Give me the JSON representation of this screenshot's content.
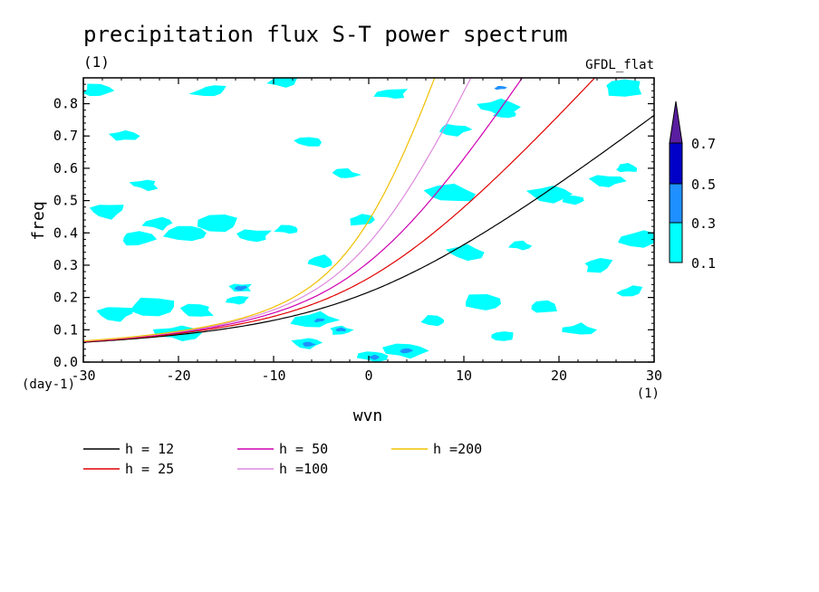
{
  "chart_data": {
    "type": "heatmap",
    "title": "precipitation flux S-T power spectrum",
    "subtitle_left": "(1)",
    "subtitle_right": "GFDL_flat",
    "xlabel": "wvn",
    "ylabel": "freq",
    "x_unit": "(1)",
    "y_unit": "(day-1)",
    "xlim": [
      -30,
      30
    ],
    "ylim": [
      0,
      0.88
    ],
    "xticks": [
      -30,
      -20,
      -10,
      0,
      10,
      20,
      30
    ],
    "xtick_labels": [
      "-30",
      "-20",
      "-10",
      "0",
      "10",
      "20",
      "30"
    ],
    "yticks": [
      0,
      0.1,
      0.2,
      0.3,
      0.4,
      0.5,
      0.6,
      0.7,
      0.8
    ],
    "ytick_labels": [
      "0.0",
      "0.1",
      "0.2",
      "0.3",
      "0.4",
      "0.5",
      "0.6",
      "0.7",
      "0.8"
    ],
    "colorbar": {
      "levels": [
        0.1,
        0.3,
        0.5,
        0.7
      ],
      "labels": [
        "0.1",
        "0.3",
        "0.5",
        "0.7"
      ],
      "colors": [
        "#00ffff",
        "#1e90ff",
        "#0000c8",
        "#5a1ea0"
      ]
    },
    "curves": [
      {
        "name": "h = 12",
        "h": 12,
        "color": "#000000"
      },
      {
        "name": "h = 25",
        "h": 25,
        "color": "#e00000"
      },
      {
        "name": "h = 50",
        "h": 50,
        "color": "#d000b0"
      },
      {
        "name": "h =100",
        "h": 100,
        "color": "#dd88dd"
      },
      {
        "name": "h =200",
        "h": 200,
        "color": "#f0c000"
      }
    ],
    "contour_patches": [
      {
        "x": -28.5,
        "y": 0.84,
        "level": 1
      },
      {
        "x": -25.8,
        "y": 0.7,
        "level": 1
      },
      {
        "x": -23.5,
        "y": 0.55,
        "level": 1
      },
      {
        "x": -27.5,
        "y": 0.47,
        "level": 1
      },
      {
        "x": -22.0,
        "y": 0.43,
        "level": 1
      },
      {
        "x": -24.5,
        "y": 0.38,
        "level": 1
      },
      {
        "x": -19.0,
        "y": 0.4,
        "level": 1
      },
      {
        "x": -15.5,
        "y": 0.43,
        "level": 1
      },
      {
        "x": -12.0,
        "y": 0.39,
        "level": 1
      },
      {
        "x": -8.5,
        "y": 0.41,
        "level": 1
      },
      {
        "x": -6.5,
        "y": 0.68,
        "level": 1
      },
      {
        "x": -2.5,
        "y": 0.58,
        "level": 1
      },
      {
        "x": -5.0,
        "y": 0.31,
        "level": 1
      },
      {
        "x": -13.5,
        "y": 0.23,
        "level": 1
      },
      {
        "x": -13.5,
        "y": 0.23,
        "level": 2
      },
      {
        "x": -13.8,
        "y": 0.19,
        "level": 1
      },
      {
        "x": -26.5,
        "y": 0.15,
        "level": 1
      },
      {
        "x": -22.5,
        "y": 0.17,
        "level": 1
      },
      {
        "x": -18.0,
        "y": 0.16,
        "level": 1
      },
      {
        "x": -5.5,
        "y": 0.13,
        "level": 1
      },
      {
        "x": -5.2,
        "y": 0.13,
        "level": 2
      },
      {
        "x": -6.5,
        "y": 0.06,
        "level": 1
      },
      {
        "x": -6.3,
        "y": 0.055,
        "level": 2
      },
      {
        "x": -3.0,
        "y": 0.1,
        "level": 1
      },
      {
        "x": -3.0,
        "y": 0.1,
        "level": 2
      },
      {
        "x": 0.5,
        "y": 0.02,
        "level": 1
      },
      {
        "x": 0.5,
        "y": 0.015,
        "level": 2
      },
      {
        "x": 4.0,
        "y": 0.035,
        "level": 1
      },
      {
        "x": 4.0,
        "y": 0.035,
        "level": 2
      },
      {
        "x": 7.0,
        "y": 0.13,
        "level": 1
      },
      {
        "x": 12.0,
        "y": 0.18,
        "level": 1
      },
      {
        "x": 18.5,
        "y": 0.17,
        "level": 1
      },
      {
        "x": 22.0,
        "y": 0.1,
        "level": 1
      },
      {
        "x": 27.5,
        "y": 0.22,
        "level": 1
      },
      {
        "x": 13.5,
        "y": 0.79,
        "level": 1
      },
      {
        "x": 13.8,
        "y": 0.85,
        "level": 2
      },
      {
        "x": 14.5,
        "y": 0.77,
        "level": 1
      },
      {
        "x": 21.5,
        "y": 0.5,
        "level": 1
      },
      {
        "x": 19.0,
        "y": 0.52,
        "level": 1
      },
      {
        "x": 25.0,
        "y": 0.56,
        "level": 1
      },
      {
        "x": 27.0,
        "y": 0.6,
        "level": 1
      },
      {
        "x": 16.0,
        "y": 0.36,
        "level": 1
      },
      {
        "x": 8.5,
        "y": 0.52,
        "level": 1
      },
      {
        "x": 9.0,
        "y": 0.72,
        "level": 1
      },
      {
        "x": 2.5,
        "y": 0.83,
        "level": 1
      },
      {
        "x": -1.0,
        "y": 0.44,
        "level": 1
      },
      {
        "x": -16.5,
        "y": 0.84,
        "level": 1
      },
      {
        "x": -9.0,
        "y": 0.87,
        "level": 1
      },
      {
        "x": 26.5,
        "y": 0.85,
        "level": 1
      },
      {
        "x": 10.0,
        "y": 0.34,
        "level": 1
      },
      {
        "x": 24.0,
        "y": 0.3,
        "level": 1
      },
      {
        "x": 28.5,
        "y": 0.38,
        "level": 1
      },
      {
        "x": -20.0,
        "y": 0.09,
        "level": 1
      },
      {
        "x": 14.0,
        "y": 0.08,
        "level": 1
      }
    ]
  }
}
